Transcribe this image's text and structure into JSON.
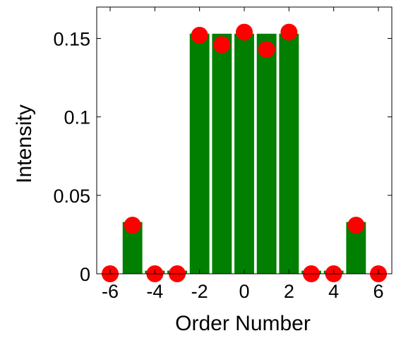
{
  "chart_data": {
    "type": "bar",
    "xlabel": "Order Number",
    "ylabel": "Intensity",
    "xlim": [
      -6.6,
      6.6
    ],
    "ylim": [
      0,
      0.17
    ],
    "x_ticks": [
      -6,
      -4,
      -2,
      0,
      2,
      4,
      6
    ],
    "y_ticks": [
      0,
      0.05,
      0.1,
      0.15
    ],
    "y_tick_labels": [
      "0",
      "0.05",
      "0.1",
      "0.15"
    ],
    "x": [
      -6,
      -5,
      -4,
      -3,
      -2,
      -1,
      0,
      1,
      2,
      3,
      4,
      5,
      6
    ],
    "series": [
      {
        "type": "bar",
        "color": "#007f00",
        "values": [
          0,
          0.033,
          0.002,
          0.002,
          0.153,
          0.153,
          0.153,
          0.153,
          0.153,
          0.002,
          0.002,
          0.033,
          0
        ]
      },
      {
        "type": "scatter",
        "color": "#ff0000",
        "values": [
          0,
          0.031,
          0,
          0,
          0.152,
          0.146,
          0.154,
          0.143,
          0.154,
          0,
          0,
          0.031,
          0
        ]
      }
    ],
    "grid": false
  }
}
